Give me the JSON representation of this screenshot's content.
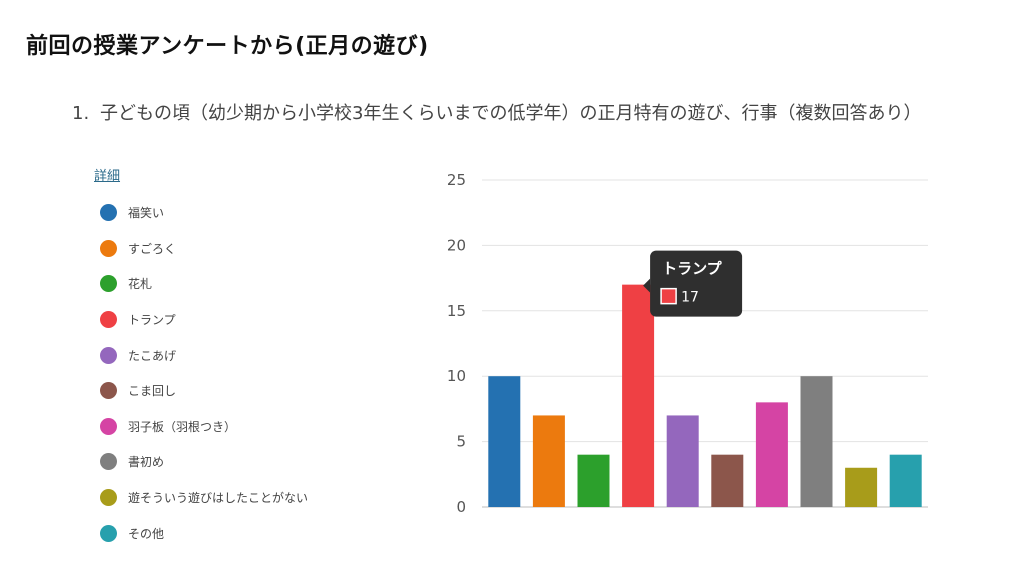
{
  "slide_title": "前回の授業アンケートから(正月の遊び)",
  "question": {
    "number": "1.",
    "text": "子どもの頃（幼少期から小学校3年生くらいまでの低学年）の正月特有の遊び、行事（複数回答あり）"
  },
  "detail_link": "詳細",
  "tooltip": {
    "title": "トランプ",
    "value": "17",
    "category_index": 3
  },
  "chart_data": {
    "type": "bar",
    "categories": [
      "福笑い",
      "すごろく",
      "花札",
      "トランプ",
      "たこあげ",
      "こま回し",
      "羽子板（羽根つき）",
      "書初め",
      "遊そういう遊びはしたことがない",
      "その他"
    ],
    "values": [
      10,
      7,
      4,
      17,
      7,
      4,
      8,
      10,
      3,
      4
    ],
    "colors": [
      "#2471b1",
      "#ec7a0e",
      "#2ca02c",
      "#ef4044",
      "#9467bd",
      "#8c564b",
      "#d544a4",
      "#7f7f7f",
      "#a89c1a",
      "#27a0ad"
    ],
    "ylim": [
      0,
      25
    ],
    "yticks": [
      0,
      5,
      10,
      15,
      20,
      25
    ],
    "grid": true,
    "legend_position": "left"
  }
}
